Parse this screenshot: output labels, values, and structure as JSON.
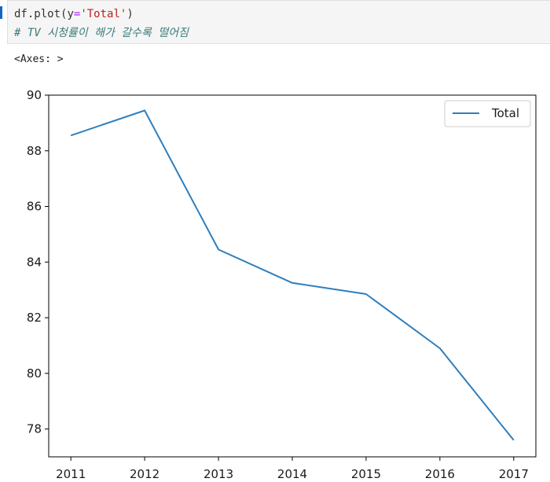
{
  "cell": {
    "code_obj": "df",
    "code_method": ".plot(",
    "code_kwarg": "y",
    "code_eq": "=",
    "code_str": "'Total'",
    "code_close": ")",
    "comment": "# TV 시청률이 해가 갈수록 떨어짐"
  },
  "output": {
    "repr": "<Axes: >"
  },
  "chart_data": {
    "type": "line",
    "x": [
      2011,
      2012,
      2013,
      2014,
      2015,
      2016,
      2017
    ],
    "series": [
      {
        "name": "Total",
        "values": [
          88.55,
          89.45,
          84.45,
          83.25,
          82.85,
          80.9,
          77.6
        ],
        "color": "#2f7ebc"
      }
    ],
    "yticks": [
      78,
      80,
      82,
      84,
      86,
      88,
      90
    ],
    "xticks": [
      "2011",
      "2012",
      "2013",
      "2014",
      "2015",
      "2016",
      "2017"
    ],
    "ylim": [
      77.0,
      90.0
    ],
    "xlim": [
      2010.7,
      2017.3
    ],
    "legend": "top-right",
    "grid": false
  }
}
